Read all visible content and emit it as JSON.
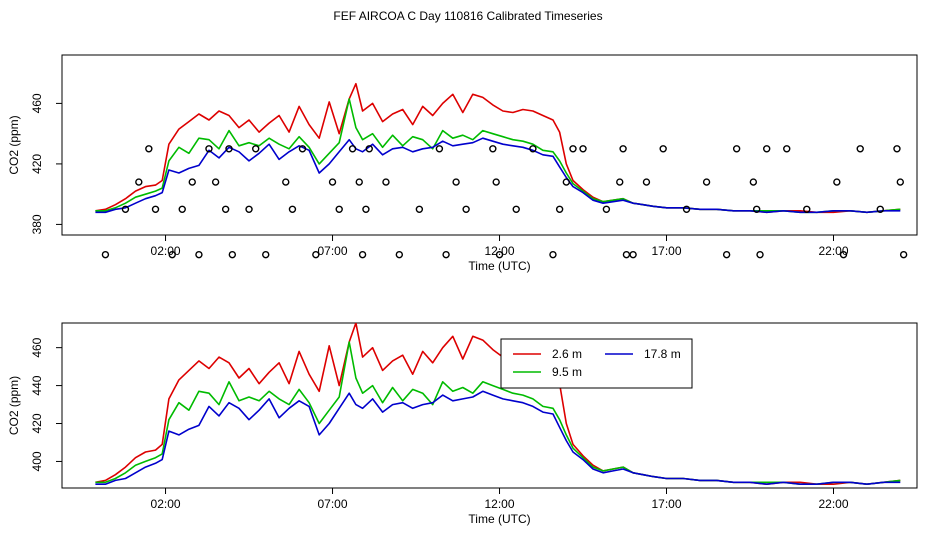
{
  "title": "FEF AIRCOA C  Day 110816  Calibrated Timeseries",
  "colors": {
    "h26": "#dd0000",
    "h95": "#00bb00",
    "h178": "#0000cc",
    "points": "#000000"
  },
  "chart_data": [
    {
      "type": "line",
      "title": "FEF AIRCOA C  Day 110816  Calibrated Timeseries",
      "xlabel": "Time (UTC)",
      "ylabel": "CO2 (ppm)",
      "x_ticks": [
        "02:00",
        "07:00",
        "12:00",
        "17:00",
        "22:00"
      ],
      "x_tick_hours": [
        2,
        7,
        12,
        17,
        22
      ],
      "xlim": [
        -1.1,
        24.5
      ],
      "y_ticks": [
        380,
        420,
        460
      ],
      "ylim": [
        373,
        492
      ],
      "grid": false,
      "x_hours": [
        -0.1,
        0.2,
        0.5,
        0.8,
        1.1,
        1.4,
        1.7,
        1.9,
        2.1,
        2.4,
        2.7,
        3.0,
        3.3,
        3.6,
        3.9,
        4.2,
        4.5,
        4.8,
        5.1,
        5.4,
        5.7,
        6.0,
        6.3,
        6.6,
        6.9,
        7.2,
        7.5,
        7.7,
        7.9,
        8.2,
        8.5,
        8.8,
        9.1,
        9.4,
        9.7,
        10.0,
        10.3,
        10.6,
        10.9,
        11.2,
        11.5,
        11.8,
        12.1,
        12.4,
        12.7,
        13.0,
        13.3,
        13.6,
        13.8,
        14.0,
        14.2,
        14.5,
        14.8,
        15.1,
        15.4,
        15.7,
        16.0,
        16.3,
        16.6,
        17.0,
        17.5,
        18.0,
        18.5,
        19.0,
        19.5,
        20.0,
        20.5,
        21.0,
        21.5,
        22.0,
        22.5,
        23.0,
        23.5,
        24.0
      ],
      "series": [
        {
          "color": "#dd0000",
          "values": [
            389,
            390,
            393,
            397,
            402,
            405,
            406,
            409,
            433,
            443,
            448,
            453,
            449,
            455,
            452,
            444,
            449,
            441,
            447,
            452,
            441,
            458,
            446,
            437,
            461,
            440,
            463,
            473,
            455,
            460,
            448,
            453,
            456,
            446,
            458,
            452,
            460,
            466,
            454,
            466,
            464,
            459,
            455,
            454,
            456,
            455,
            452,
            449,
            441,
            420,
            409,
            403,
            398,
            395,
            396,
            397,
            394,
            393,
            392,
            391,
            391,
            390,
            390,
            389,
            389,
            388,
            389,
            389,
            388,
            388,
            389,
            388,
            389,
            390
          ]
        },
        {
          "color": "#00bb00",
          "values": [
            389,
            389,
            391,
            394,
            398,
            400,
            402,
            404,
            422,
            431,
            427,
            437,
            436,
            430,
            442,
            432,
            434,
            432,
            437,
            433,
            430,
            438,
            431,
            420,
            427,
            434,
            463,
            444,
            436,
            440,
            431,
            439,
            432,
            438,
            436,
            430,
            442,
            437,
            439,
            436,
            442,
            440,
            438,
            436,
            435,
            433,
            429,
            428,
            422,
            414,
            407,
            402,
            397,
            395,
            396,
            397,
            394,
            393,
            392,
            391,
            391,
            390,
            390,
            389,
            389,
            389,
            389,
            388,
            388,
            389,
            389,
            388,
            389,
            390
          ]
        },
        {
          "color": "#0000cc",
          "values": [
            388,
            388,
            390,
            391,
            394,
            397,
            399,
            401,
            416,
            414,
            417,
            419,
            429,
            424,
            431,
            428,
            422,
            427,
            433,
            423,
            428,
            432,
            429,
            414,
            420,
            428,
            436,
            430,
            428,
            433,
            426,
            430,
            431,
            428,
            430,
            431,
            435,
            432,
            433,
            434,
            437,
            435,
            433,
            432,
            431,
            429,
            426,
            425,
            418,
            411,
            405,
            401,
            396,
            394,
            395,
            396,
            394,
            393,
            392,
            391,
            391,
            390,
            390,
            389,
            389,
            388,
            389,
            388,
            388,
            389,
            389,
            388,
            389,
            389
          ]
        }
      ],
      "points_x": [
        0.2,
        0.8,
        1.2,
        1.5,
        1.7,
        2.2,
        2.5,
        2.8,
        3.0,
        3.3,
        3.5,
        3.8,
        3.9,
        4.0,
        4.5,
        4.7,
        5.0,
        5.6,
        5.8,
        6.1,
        6.5,
        7.0,
        7.2,
        7.6,
        7.8,
        7.9,
        8.0,
        8.1,
        8.6,
        9.0,
        9.6,
        10.2,
        10.4,
        10.7,
        11.0,
        11.8,
        11.9,
        12.0,
        12.5,
        13.0,
        13.6,
        13.8,
        14.0,
        14.2,
        14.5,
        15.2,
        15.6,
        15.7,
        15.8,
        16.0,
        16.4,
        16.9,
        17.6,
        18.2,
        18.8,
        19.1,
        19.6,
        19.7,
        19.8,
        20.0,
        20.6,
        21.2,
        22.1,
        22.3,
        22.8,
        23.4,
        23.9,
        24.0,
        24.1
      ],
      "points_y": [
        360,
        390,
        408,
        430,
        390,
        360,
        390,
        408,
        360,
        430,
        408,
        390,
        430,
        360,
        390,
        430,
        360,
        408,
        390,
        430,
        360,
        408,
        390,
        430,
        408,
        360,
        390,
        430,
        408,
        360,
        390,
        430,
        360,
        408,
        390,
        430,
        408,
        360,
        390,
        430,
        360,
        390,
        408,
        430,
        430,
        390,
        408,
        430,
        360,
        360,
        408,
        430,
        390,
        408,
        360,
        430,
        408,
        390,
        360,
        430,
        430,
        390,
        408,
        360,
        430,
        390,
        430,
        408,
        360
      ]
    },
    {
      "type": "line",
      "xlabel": "Time (UTC)",
      "ylabel": "CO2 (ppm)",
      "x_ticks": [
        "02:00",
        "07:00",
        "12:00",
        "17:00",
        "22:00"
      ],
      "x_tick_hours": [
        2,
        7,
        12,
        17,
        22
      ],
      "xlim": [
        -1.1,
        24.5
      ],
      "y_ticks": [
        400,
        420,
        440,
        460
      ],
      "ylim": [
        386,
        473
      ],
      "legend": "top-right",
      "grid": false,
      "x_hours": "same as panel 1",
      "series": [
        {
          "name": "2.6 m",
          "color": "#dd0000",
          "values": "same as panel 1"
        },
        {
          "name": "9.5 m",
          "color": "#00bb00",
          "values": "same as panel 1"
        },
        {
          "name": "17.8 m",
          "color": "#0000cc",
          "values": "same as panel 1"
        }
      ]
    }
  ]
}
